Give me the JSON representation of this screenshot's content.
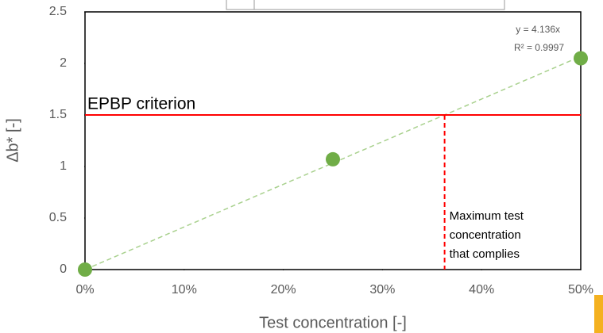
{
  "chart_data": {
    "type": "scatter",
    "x_label": "Test concentration [-]",
    "y_label": "Δb* [-]",
    "x": [
      0,
      0.25,
      0.5
    ],
    "series": [
      {
        "color": "#70ad47",
        "values": [
          0,
          1.07,
          2.05
        ]
      }
    ],
    "xlim": [
      0,
      0.5
    ],
    "ylim": [
      0,
      2.5
    ],
    "xticks": [
      {
        "value": 0,
        "label": "0%"
      },
      {
        "value": 0.1,
        "label": "10%"
      },
      {
        "value": 0.2,
        "label": "20%"
      },
      {
        "value": 0.3,
        "label": "30%"
      },
      {
        "value": 0.4,
        "label": "40%"
      },
      {
        "value": 0.5,
        "label": "50%"
      }
    ],
    "yticks": [
      0,
      0.5,
      1,
      1.5,
      2,
      2.5
    ],
    "grid": false,
    "trendline": {
      "slope": 4.136,
      "label": "y = 4.136x",
      "r2_label": "R² = 0.9997",
      "color": "#a9d18e"
    },
    "criterion": {
      "value": 1.5,
      "label": "EPBP criterion",
      "color": "#ff0000"
    },
    "annotation": [
      "Maximum test",
      "concentration",
      "that complies"
    ]
  }
}
